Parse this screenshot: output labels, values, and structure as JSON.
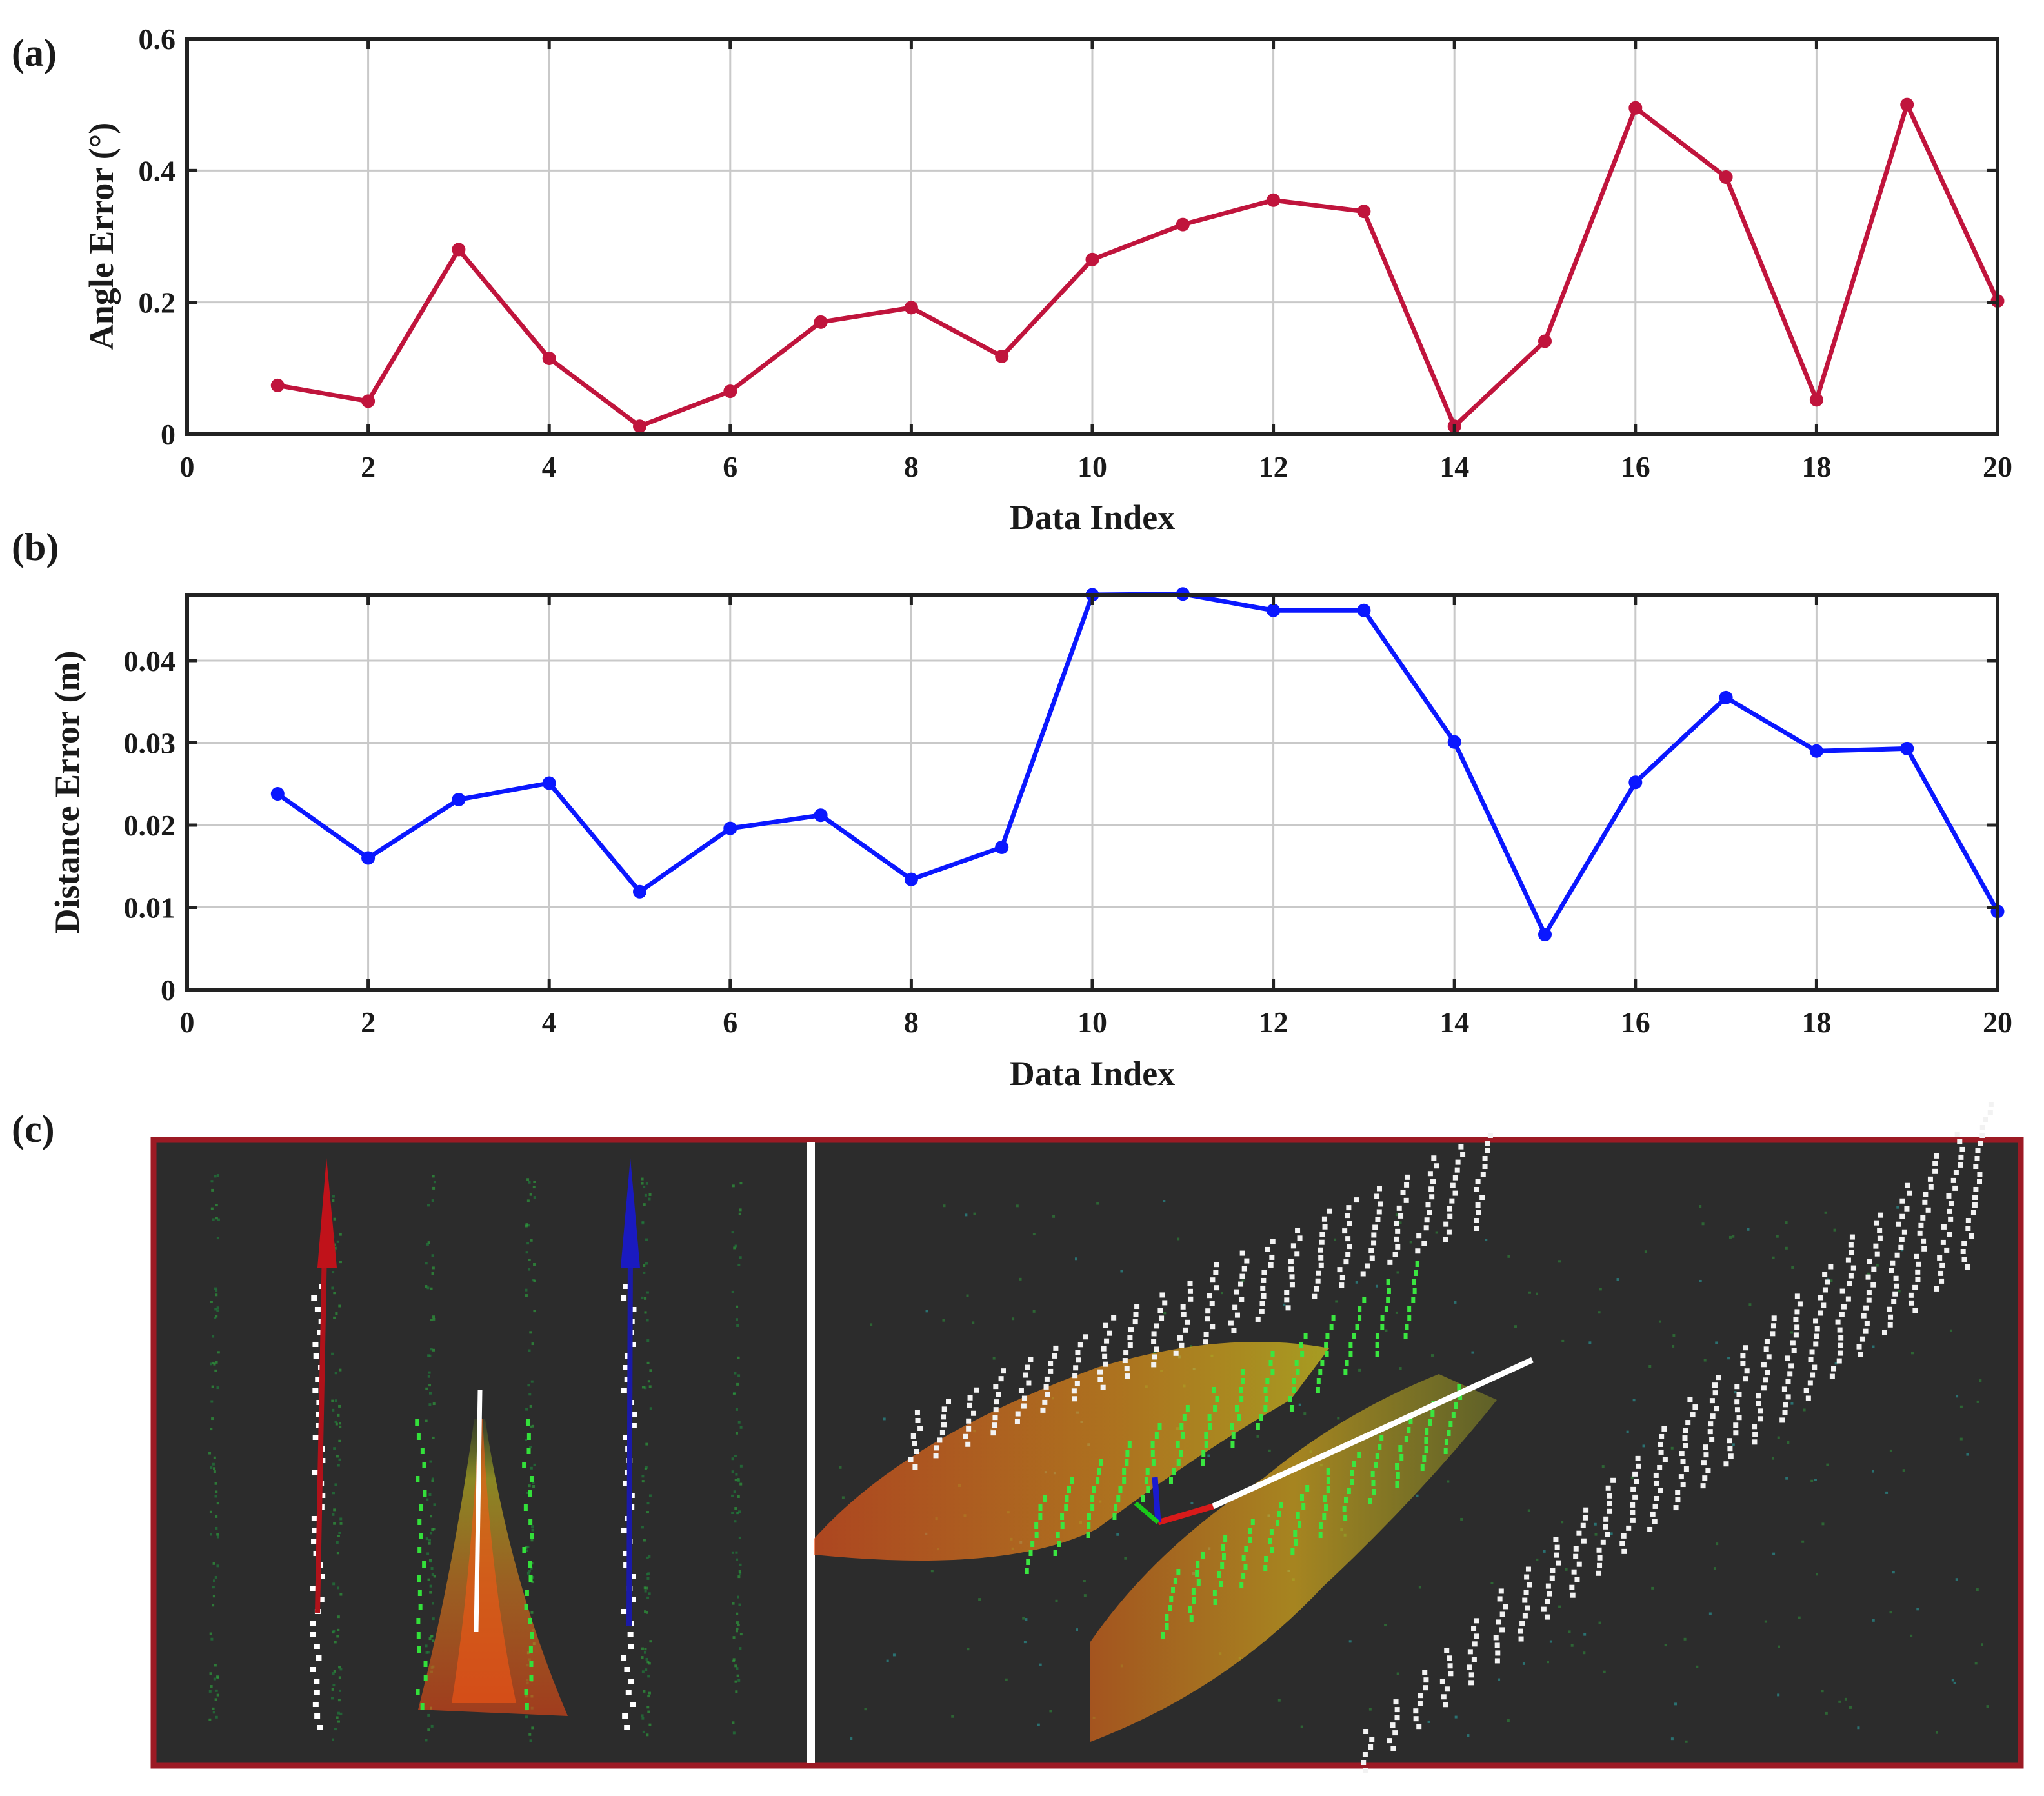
{
  "panels": {
    "a": "(a)",
    "b": "(b)",
    "c": "(c)"
  },
  "colors": {
    "angle_series": "#c0143c",
    "distance_series": "#0a17ff",
    "scene_border": "#9c1a24",
    "scene_background": "#2c2c2c"
  },
  "chart_data": [
    {
      "type": "line",
      "panel": "(a)",
      "xlabel": "Data Index",
      "ylabel": "Angle Error (°)",
      "xlim": [
        0,
        20
      ],
      "ylim": [
        0,
        0.6
      ],
      "xticks": [
        "0",
        "2",
        "4",
        "6",
        "8",
        "10",
        "12",
        "14",
        "16",
        "18",
        "20"
      ],
      "yticks": [
        "0",
        "0.2",
        "0.4",
        "0.6"
      ],
      "grid": true,
      "series": [
        {
          "name": "Angle Error",
          "x": [
            1,
            2,
            3,
            4,
            5,
            6,
            7,
            8,
            9,
            10,
            11,
            12,
            13,
            14,
            15,
            16,
            17,
            18,
            19,
            20
          ],
          "values": [
            0.074,
            0.05,
            0.28,
            0.115,
            0.012,
            0.065,
            0.17,
            0.192,
            0.118,
            0.265,
            0.318,
            0.355,
            0.338,
            0.012,
            0.141,
            0.495,
            0.39,
            0.052,
            0.5,
            0.202
          ]
        }
      ]
    },
    {
      "type": "line",
      "panel": "(b)",
      "xlabel": "Data Index",
      "ylabel": "Distance Error (m)",
      "xlim": [
        0,
        20
      ],
      "ylim": [
        0,
        0.048
      ],
      "xticks": [
        "0",
        "2",
        "4",
        "6",
        "8",
        "10",
        "12",
        "14",
        "16",
        "18",
        "20"
      ],
      "yticks": [
        "0",
        "0.01",
        "0.02",
        "0.03",
        "0.04"
      ],
      "grid": true,
      "series": [
        {
          "name": "Distance Error",
          "x": [
            1,
            2,
            3,
            4,
            5,
            6,
            7,
            8,
            9,
            10,
            11,
            12,
            13,
            14,
            15,
            16,
            17,
            18,
            19,
            20
          ],
          "values": [
            0.0238,
            0.016,
            0.0231,
            0.0251,
            0.0119,
            0.0196,
            0.0212,
            0.0134,
            0.0173,
            0.048,
            0.0481,
            0.0461,
            0.0461,
            0.0301,
            0.0067,
            0.0252,
            0.0355,
            0.029,
            0.0293,
            0.0095
          ]
        }
      ]
    }
  ]
}
